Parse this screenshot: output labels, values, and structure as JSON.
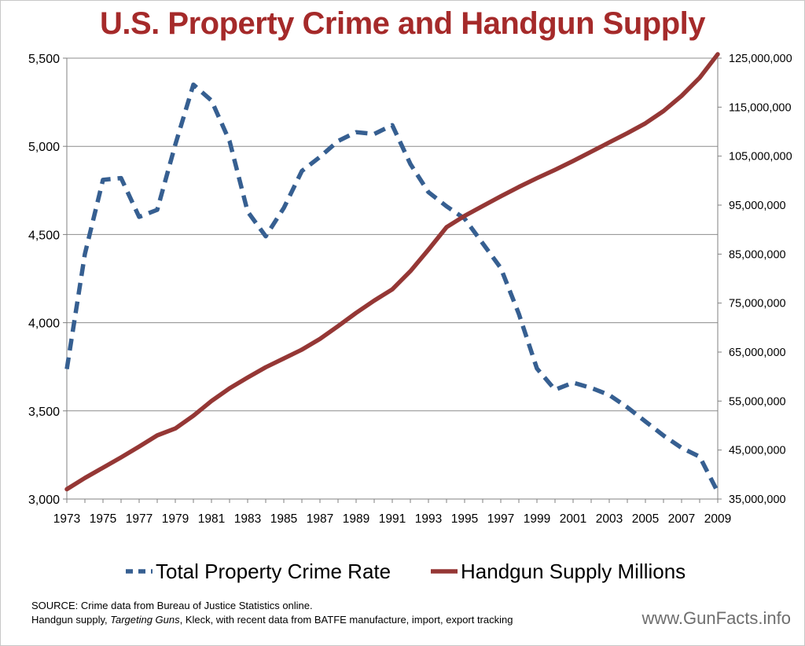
{
  "title": "U.S. Property Crime and Handgun Supply",
  "colors": {
    "title": "#a52a2a",
    "crime": "#365f91",
    "handgun": "#953735",
    "grid": "#8c8c8c",
    "axis": "#808080"
  },
  "source_line1": "SOURCE: Crime data from Bureau of Justice Statistics online.",
  "source_line2_prefix": "Handgun supply, ",
  "source_line2_italic": "Targeting Guns",
  "source_line2_suffix": ", Kleck, with recent data from BATFE manufacture, import, export tracking",
  "watermark": "www.GunFacts.info",
  "chart_data": {
    "type": "line",
    "x": [
      1973,
      1974,
      1975,
      1976,
      1977,
      1978,
      1979,
      1980,
      1981,
      1982,
      1983,
      1984,
      1985,
      1986,
      1987,
      1988,
      1989,
      1990,
      1991,
      1992,
      1993,
      1994,
      1995,
      1996,
      1997,
      1998,
      1999,
      2000,
      2001,
      2002,
      2003,
      2004,
      2005,
      2006,
      2007,
      2008,
      2009
    ],
    "x_ticks": [
      "1973",
      "1975",
      "1977",
      "1979",
      "1981",
      "1983",
      "1985",
      "1987",
      "1989",
      "1991",
      "1993",
      "1995",
      "1997",
      "1999",
      "2001",
      "2003",
      "2005",
      "2007",
      "2009"
    ],
    "y_left_ticks": [
      "3,000",
      "3,500",
      "4,000",
      "4,500",
      "5,000",
      "5,500"
    ],
    "y_left_lim": [
      3000,
      5500
    ],
    "y_right_ticks": [
      "35,000,000",
      "45,000,000",
      "55,000,000",
      "65,000,000",
      "75,000,000",
      "85,000,000",
      "95,000,000",
      "105,000,000",
      "115,000,000",
      "125,000,000"
    ],
    "y_right_lim": [
      35000000,
      125000000
    ],
    "grid": true,
    "legend_position": "bottom",
    "series": [
      {
        "name": "Total Property Crime Rate",
        "axis": "left",
        "style": "dashed",
        "values": [
          3737,
          4390,
          4810,
          4820,
          4600,
          4640,
          5010,
          5350,
          5260,
          5030,
          4630,
          4490,
          4650,
          4860,
          4940,
          5030,
          5080,
          5070,
          5120,
          4900,
          4740,
          4660,
          4590,
          4450,
          4310,
          4050,
          3740,
          3620,
          3660,
          3630,
          3590,
          3520,
          3440,
          3360,
          3290,
          3240,
          3040
        ]
      },
      {
        "name": "Handgun Supply Millions",
        "axis": "right",
        "style": "solid",
        "values": [
          37000000,
          39300000,
          41400000,
          43500000,
          45700000,
          48000000,
          49400000,
          52000000,
          55000000,
          57600000,
          59800000,
          61900000,
          63700000,
          65500000,
          67700000,
          70300000,
          73000000,
          75500000,
          77800000,
          81500000,
          85900000,
          90500000,
          92800000,
          94800000,
          96800000,
          98700000,
          100500000,
          102200000,
          104000000,
          105900000,
          107800000,
          109700000,
          111700000,
          114200000,
          117300000,
          121000000,
          125800000
        ]
      }
    ]
  }
}
